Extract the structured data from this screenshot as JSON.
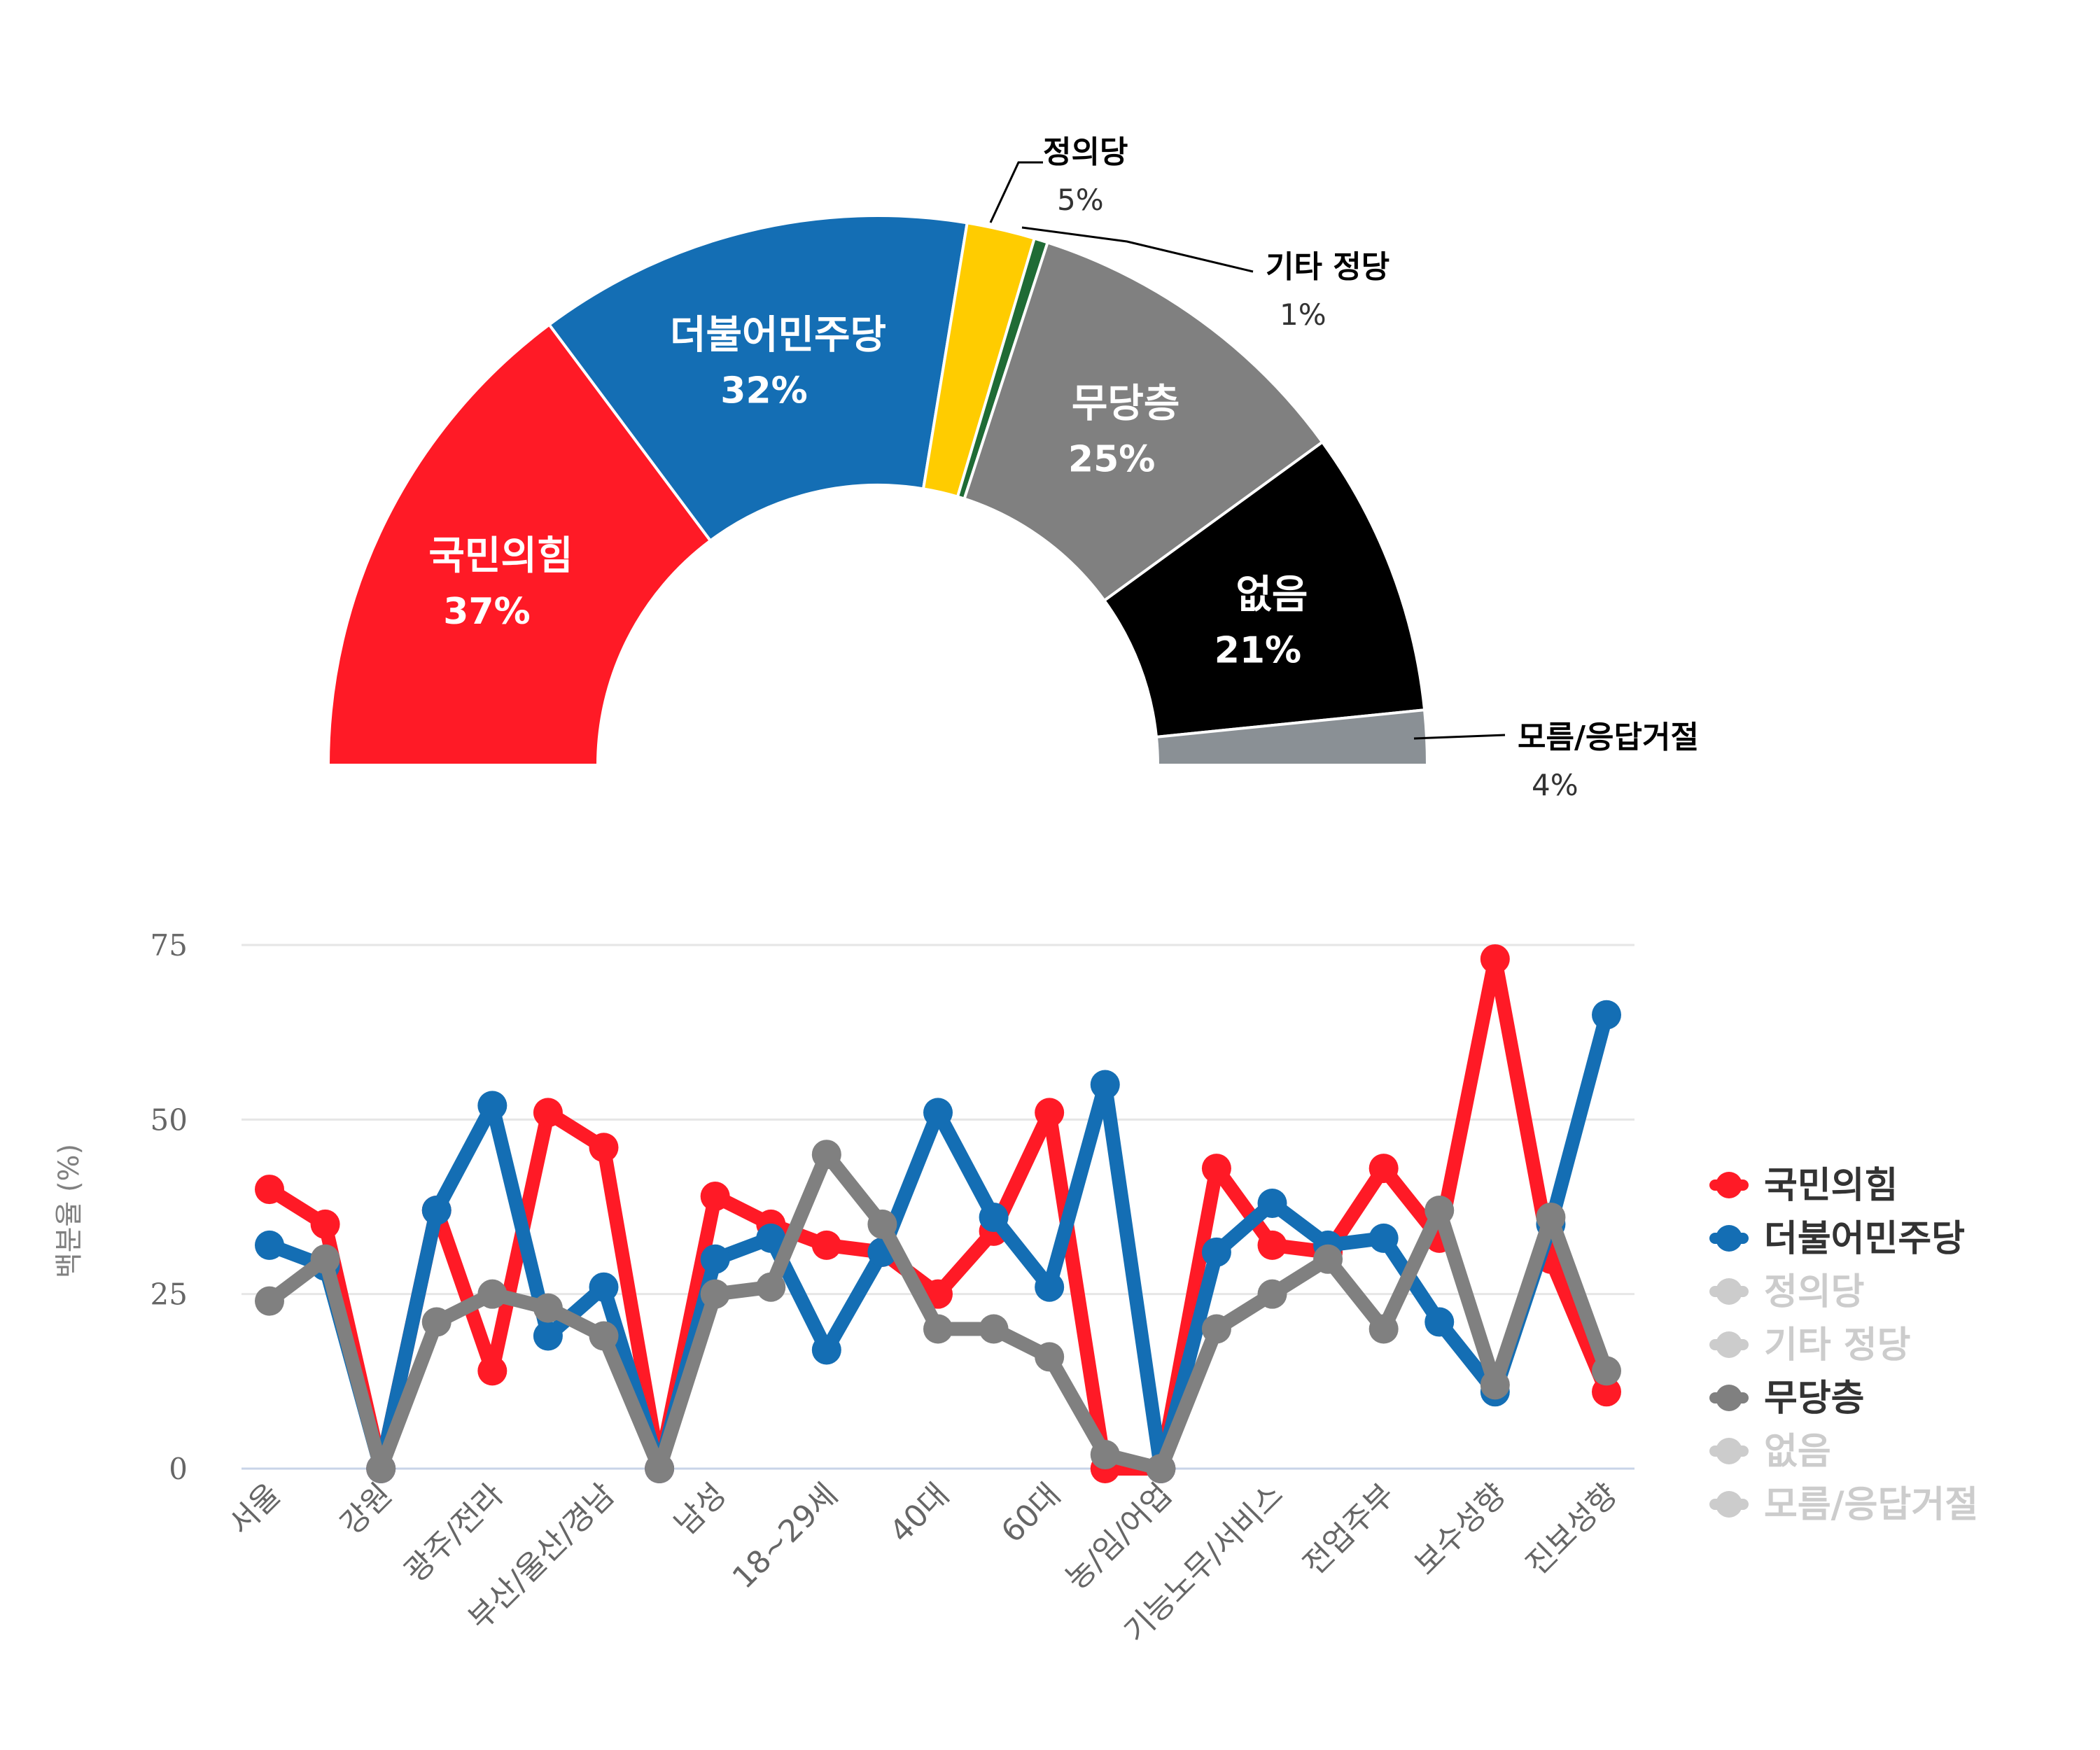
{
  "chart_data": [
    {
      "type": "pie",
      "variant": "semicircle-donut",
      "slices": [
        {
          "label": "국민의힘",
          "value": 37,
          "display": "37%",
          "color": "#ff1a26",
          "label_inside": true
        },
        {
          "label": "더불어민주당",
          "value": 32,
          "display": "32%",
          "color": "#146eb4",
          "label_inside": true
        },
        {
          "label": "정의당",
          "value": 5,
          "display": "5%",
          "color": "#ffcc00",
          "label_inside": false
        },
        {
          "label": "기타 정당",
          "value": 1,
          "display": "1%",
          "color": "#1f6b35",
          "label_inside": false
        },
        {
          "label": "무당층",
          "value": 25,
          "display": "25%",
          "color": "#808080",
          "label_inside": true
        },
        {
          "label": "없음",
          "value": 21,
          "display": "21%",
          "color": "#000000",
          "label_inside": true
        },
        {
          "label": "모름/응답거절",
          "value": 4,
          "display": "4%",
          "color": "#8a9095",
          "label_inside": false
        }
      ]
    },
    {
      "type": "line",
      "ylabel": "백분율 (%)",
      "ylim": [
        0,
        75
      ],
      "yticks": [
        0,
        25,
        50,
        75
      ],
      "grid": true,
      "legend_position": "right",
      "x_tick_labels": [
        "서울",
        "강원",
        "광주/전라",
        "부산/울산/경남",
        "남성",
        "18~29세",
        "40대",
        "60대",
        "농/임/어업",
        "기능노무/서비스",
        "전업주부",
        "보수성향",
        "진보성향"
      ],
      "x_tick_indices": [
        0,
        2,
        4,
        6,
        8,
        10,
        12,
        14,
        16,
        18,
        20,
        22,
        24
      ],
      "n_points": 25,
      "series": [
        {
          "name": "국민의힘",
          "color": "#ff1a26",
          "visible": true,
          "values": [
            40,
            35,
            0,
            37,
            14,
            51,
            46,
            0,
            39,
            35,
            32,
            31,
            25,
            34,
            51,
            0,
            0,
            43,
            32,
            31,
            43,
            33,
            73,
            30,
            11
          ]
        },
        {
          "name": "더불어민주당",
          "color": "#146eb4",
          "visible": true,
          "values": [
            32,
            29,
            0,
            37,
            52,
            19,
            26,
            0,
            30,
            33,
            17,
            31,
            51,
            36,
            26,
            55,
            0,
            31,
            38,
            32,
            33,
            21,
            11,
            35,
            65
          ]
        },
        {
          "name": "정의당",
          "color": "#cccccc",
          "visible": false,
          "values": []
        },
        {
          "name": "기타 정당",
          "color": "#cccccc",
          "visible": false,
          "values": []
        },
        {
          "name": "무당층",
          "color": "#808080",
          "visible": true,
          "values": [
            24,
            30,
            0,
            21,
            25,
            23,
            19,
            0,
            25,
            26,
            45,
            35,
            20,
            20,
            16,
            2,
            0,
            20,
            25,
            30,
            20,
            37,
            12,
            36,
            14
          ]
        },
        {
          "name": "없음",
          "color": "#cccccc",
          "visible": false,
          "values": []
        },
        {
          "name": "모름/응답거절",
          "color": "#cccccc",
          "visible": false,
          "values": []
        }
      ]
    }
  ],
  "legend_colors": {
    "active_text": "#333333",
    "inactive": "#cccccc"
  }
}
